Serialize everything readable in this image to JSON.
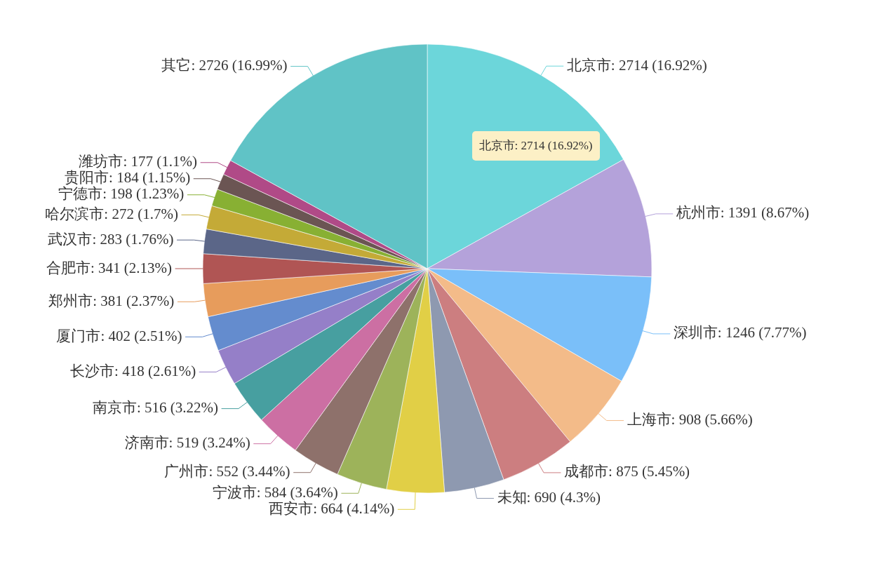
{
  "chart_data": {
    "type": "pie",
    "categories": [
      "北京市",
      "杭州市",
      "深圳市",
      "上海市",
      "成都市",
      "未知",
      "西安市",
      "宁波市",
      "广州市",
      "济南市",
      "南京市",
      "长沙市",
      "厦门市",
      "郑州市",
      "合肥市",
      "武汉市",
      "哈尔滨市",
      "宁德市",
      "贵阳市",
      "潍坊市",
      "其它"
    ],
    "values": [
      2714,
      1391,
      1246,
      908,
      875,
      690,
      664,
      584,
      552,
      519,
      516,
      418,
      402,
      381,
      341,
      283,
      272,
      198,
      184,
      177,
      2726
    ],
    "value_labels": [
      "2714 (16.92%)",
      "1391 (8.67%)",
      "1246 (7.77%)",
      "908 (5.66%)",
      "875 (5.45%)",
      "690 (4.3%)",
      "664 (4.14%)",
      "584 (3.64%)",
      "552 (3.44%)",
      "519 (3.24%)",
      "516 (3.22%)",
      "418 (2.61%)",
      "402 (2.51%)",
      "381 (2.37%)",
      "341 (2.13%)",
      "283 (1.76%)",
      "272 (1.7%)",
      "198 (1.23%)",
      "184 (1.15%)",
      "177 (1.1%)",
      "2726 (16.99%)"
    ],
    "colors": [
      "#6cd6da",
      "#b4a2da",
      "#7abff9",
      "#f3bb89",
      "#cc7e80",
      "#8e99b0",
      "#e1cf46",
      "#9db35a",
      "#8e716b",
      "#cc6fa3",
      "#479fa0",
      "#957fc8",
      "#648cce",
      "#e79c5c",
      "#b05554",
      "#5b6688",
      "#c4aa37",
      "#88b033",
      "#6b5553",
      "#b04a87",
      "#60c3c6"
    ],
    "annotations": [
      {
        "text": "北京市: 2714 (16.92%)",
        "x": "北京市"
      }
    ]
  }
}
